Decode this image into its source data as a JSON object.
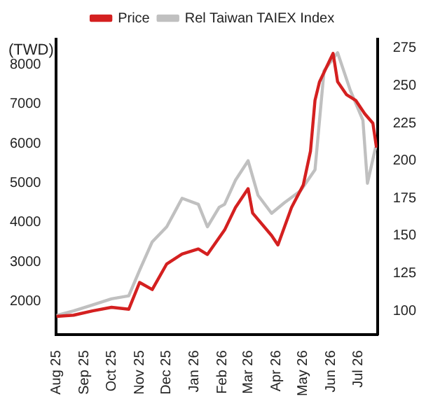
{
  "chart_data": {
    "type": "line",
    "ylabel": "(TWD)",
    "legend": "top",
    "grid": false,
    "marker": "none",
    "line_style": "solid",
    "xlim": [
      "2025-08-01",
      "2026-07-22"
    ],
    "xticks": [
      {
        "value": "2025-08-01",
        "label": "Aug 25"
      },
      {
        "value": "2025-09-01",
        "label": "Sep 25"
      },
      {
        "value": "2025-10-01",
        "label": "Oct 25"
      },
      {
        "value": "2025-11-01",
        "label": "Nov 25"
      },
      {
        "value": "2025-12-01",
        "label": "Dec 25"
      },
      {
        "value": "2026-01-01",
        "label": "Jan 26"
      },
      {
        "value": "2026-02-01",
        "label": "Feb 26"
      },
      {
        "value": "2026-03-01",
        "label": "Mar 26"
      },
      {
        "value": "2026-04-01",
        "label": "Apr 26"
      },
      {
        "value": "2026-05-01",
        "label": "May 26"
      },
      {
        "value": "2026-06-01",
        "label": "Jun 26"
      },
      {
        "value": "2026-07-01",
        "label": "Jul 26"
      }
    ],
    "ylim": [
      1150,
      8650
    ],
    "yticks": [
      2000,
      3000,
      4000,
      5000,
      6000,
      7000,
      8000
    ],
    "y2lim": [
      84,
      281
    ],
    "y2ticks": [
      100,
      125,
      150,
      175,
      200,
      225,
      250,
      275
    ],
    "series": [
      {
        "name": "Price",
        "color": "#d42020",
        "x": [
          "2025-08-01",
          "2025-08-20",
          "2025-09-10",
          "2025-10-01",
          "2025-10-20",
          "2025-11-01",
          "2025-11-15",
          "2025-12-01",
          "2025-12-18",
          "2026-01-05",
          "2026-01-15",
          "2026-02-03",
          "2026-02-15",
          "2026-03-01",
          "2026-03-06",
          "2026-03-27",
          "2026-04-03",
          "2026-04-18",
          "2026-05-01",
          "2026-05-09",
          "2026-05-14",
          "2026-05-19",
          "2026-05-29",
          "2026-06-03",
          "2026-06-08",
          "2026-06-18",
          "2026-06-28",
          "2026-07-08",
          "2026-07-17",
          "2026-07-21"
        ],
        "values": [
          1620,
          1650,
          1760,
          1850,
          1800,
          2480,
          2300,
          2950,
          3200,
          3330,
          3190,
          3810,
          4380,
          4860,
          4240,
          3670,
          3430,
          4380,
          4950,
          5810,
          7100,
          7570,
          8050,
          8290,
          7570,
          7240,
          7100,
          6760,
          6520,
          5900
        ]
      },
      {
        "name": "Rel Taiwan TAIEX Index",
        "color": "#c0c0c0",
        "axis": "y2",
        "x": [
          "2025-08-01",
          "2025-08-20",
          "2025-09-10",
          "2025-10-01",
          "2025-10-20",
          "2025-11-01",
          "2025-11-15",
          "2025-12-01",
          "2025-12-18",
          "2026-01-05",
          "2026-01-15",
          "2026-01-28",
          "2026-02-03",
          "2026-02-15",
          "2026-03-01",
          "2026-03-12",
          "2026-03-27",
          "2026-04-10",
          "2026-04-28",
          "2026-05-14",
          "2026-05-24",
          "2026-06-08",
          "2026-06-22",
          "2026-07-06",
          "2026-07-11",
          "2026-07-20"
        ],
        "values": [
          97,
          100,
          104,
          108,
          110,
          127,
          146,
          156,
          175,
          171,
          156,
          169,
          171,
          187,
          200,
          177,
          165,
          172,
          180,
          194,
          260,
          272,
          247,
          227,
          185,
          209
        ]
      }
    ]
  }
}
